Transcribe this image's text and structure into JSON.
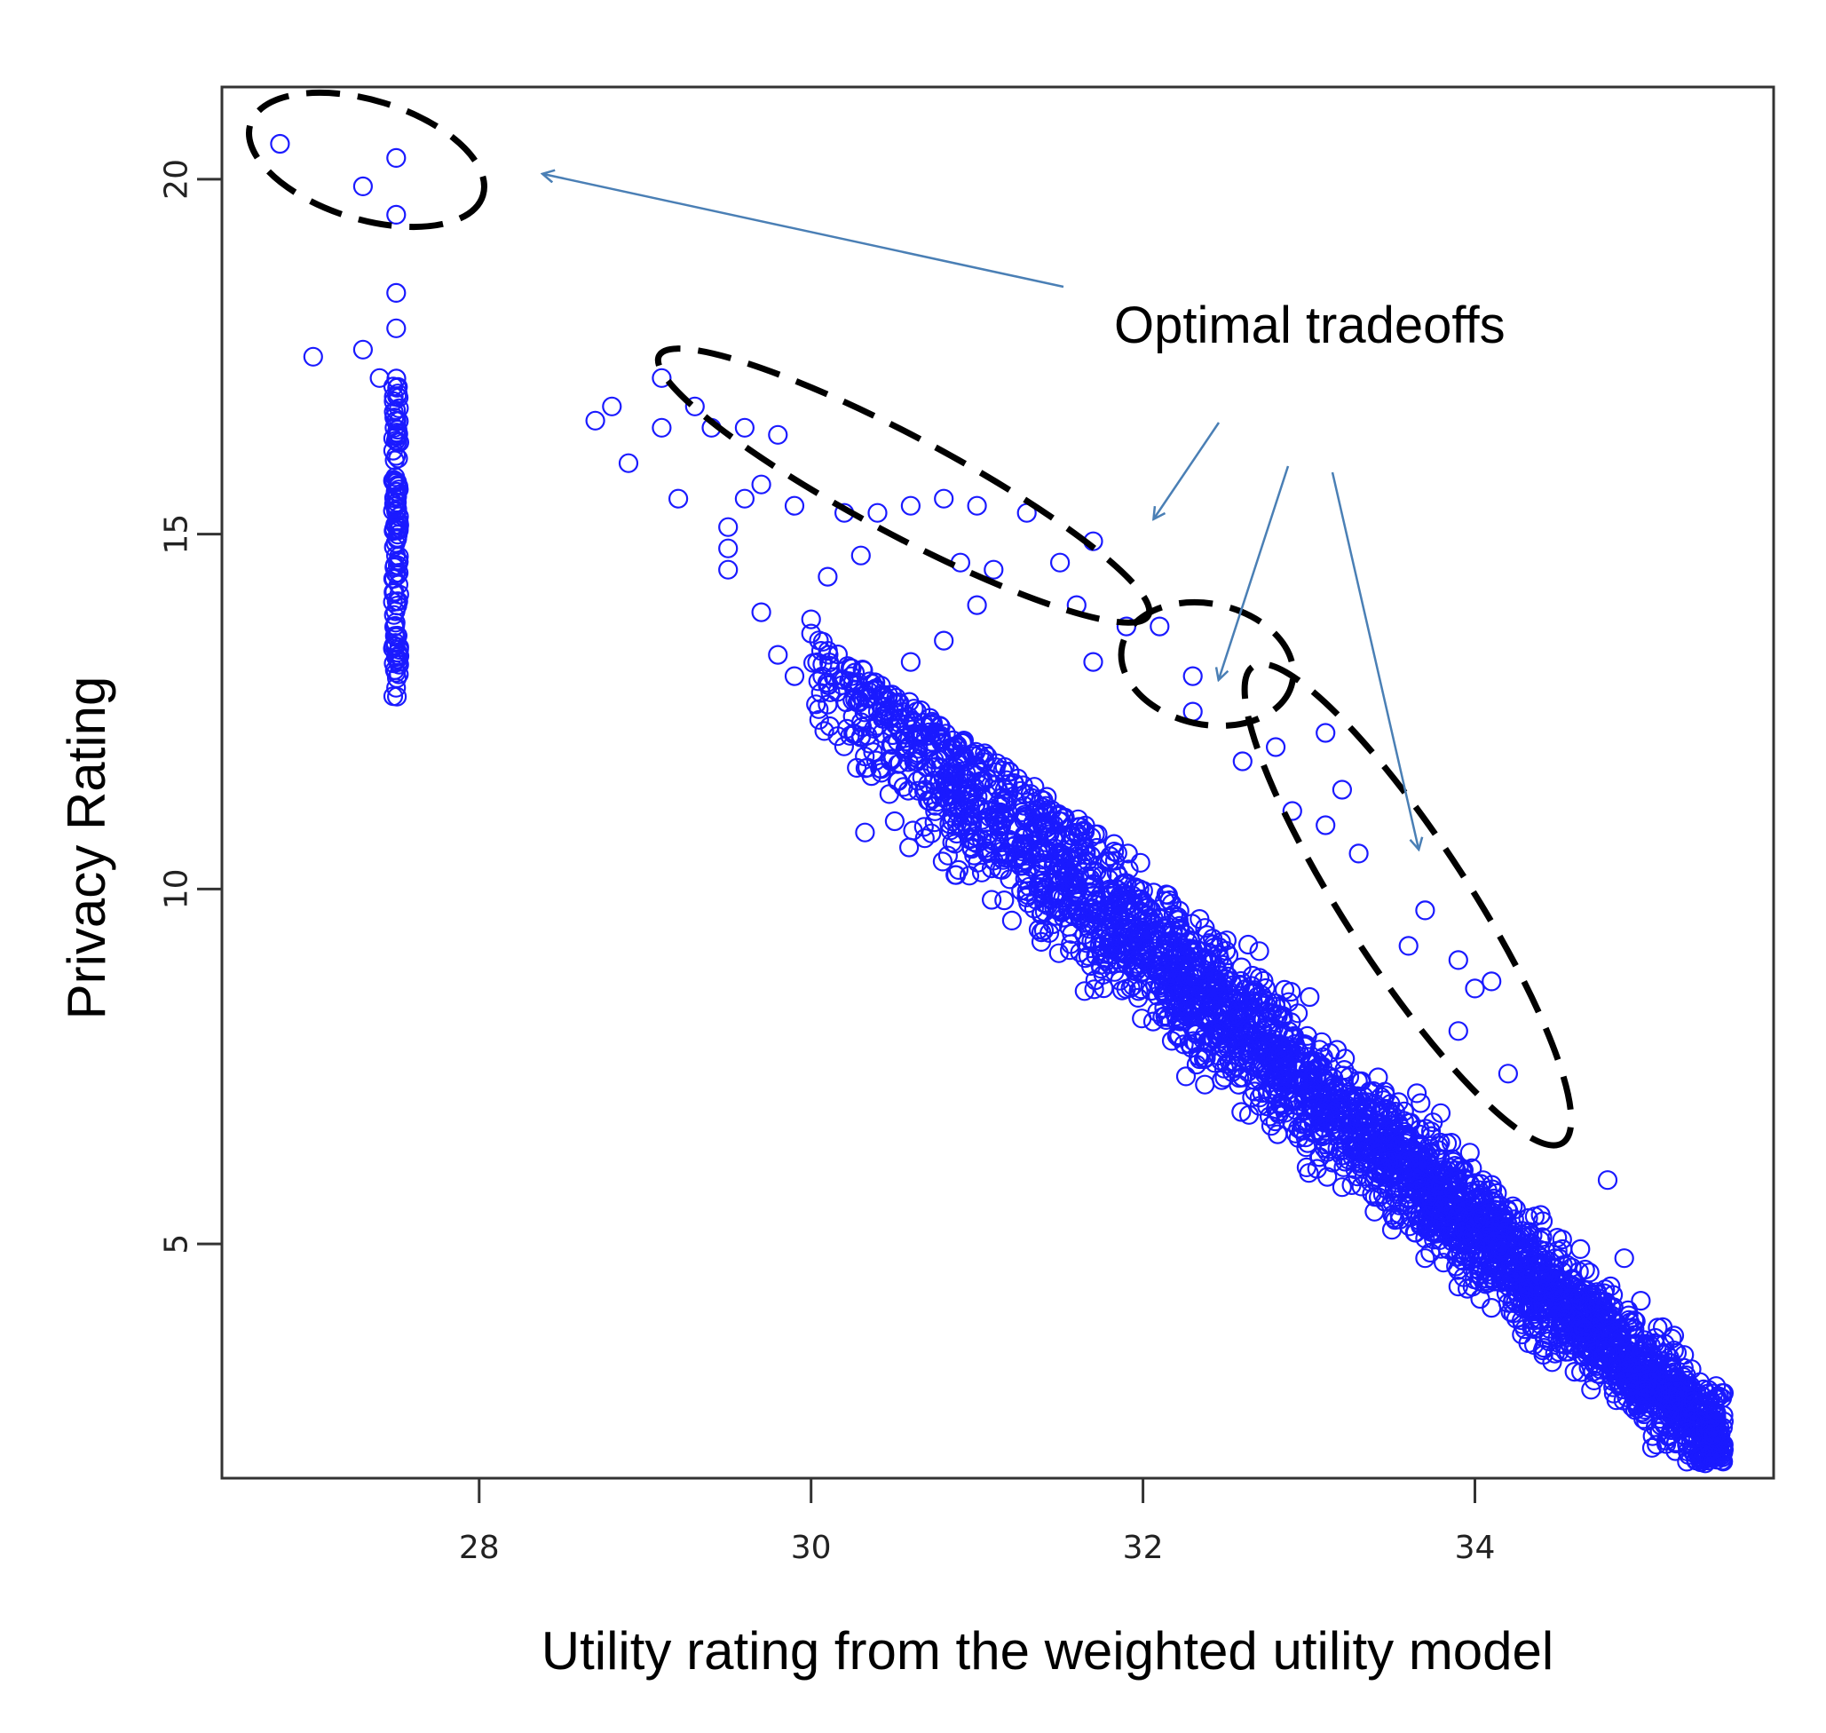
{
  "chart_data": {
    "type": "scatter",
    "xlabel": "Utility rating from the weighted utility model",
    "ylabel": "Privacy Rating",
    "xlim": [
      26.45,
      35.8
    ],
    "ylim": [
      1.7,
      21.3
    ],
    "xticks": [
      28,
      30,
      32,
      34
    ],
    "yticks": [
      5,
      10,
      15,
      20
    ],
    "grid": false,
    "marker": "open-circle",
    "point_color": "#1a1aff",
    "annotation": {
      "text": "Optimal tradeoffs"
    },
    "annotation_color": "#4a7fb5",
    "series": [
      {
        "points": [
          [
            26.8,
            20.5
          ],
          [
            27.3,
            19.9
          ],
          [
            27.5,
            20.3
          ],
          [
            27.5,
            19.5
          ],
          [
            27.0,
            17.5
          ],
          [
            27.3,
            17.6
          ],
          [
            27.4,
            17.2
          ],
          [
            27.5,
            18.4
          ],
          [
            27.5,
            17.9
          ],
          [
            28.7,
            16.6
          ],
          [
            28.9,
            16.0
          ],
          [
            28.8,
            16.8
          ],
          [
            29.1,
            16.5
          ],
          [
            29.1,
            17.2
          ],
          [
            29.2,
            15.5
          ],
          [
            29.3,
            16.8
          ],
          [
            29.4,
            16.5
          ],
          [
            29.6,
            16.5
          ],
          [
            29.5,
            15.1
          ],
          [
            29.5,
            14.8
          ],
          [
            29.5,
            14.5
          ],
          [
            29.6,
            15.5
          ],
          [
            29.7,
            15.7
          ],
          [
            29.7,
            13.9
          ],
          [
            29.8,
            16.4
          ],
          [
            29.8,
            13.3
          ],
          [
            29.9,
            13.0
          ],
          [
            29.9,
            15.4
          ],
          [
            30.0,
            13.6
          ],
          [
            30.0,
            13.8
          ],
          [
            30.1,
            14.4
          ],
          [
            30.2,
            15.3
          ],
          [
            30.1,
            12.6
          ],
          [
            30.3,
            14.7
          ],
          [
            30.4,
            15.3
          ],
          [
            30.6,
            15.4
          ],
          [
            30.8,
            15.5
          ],
          [
            30.9,
            14.6
          ],
          [
            31.0,
            14.0
          ],
          [
            31.1,
            14.5
          ],
          [
            31.0,
            15.4
          ],
          [
            31.3,
            15.3
          ],
          [
            31.5,
            14.6
          ],
          [
            31.7,
            14.9
          ],
          [
            31.6,
            14.0
          ],
          [
            31.7,
            13.2
          ],
          [
            31.9,
            13.7
          ],
          [
            32.1,
            13.7
          ],
          [
            32.3,
            13.0
          ],
          [
            32.3,
            12.5
          ],
          [
            32.6,
            11.8
          ],
          [
            32.8,
            12.0
          ],
          [
            32.9,
            11.1
          ],
          [
            33.1,
            12.2
          ],
          [
            33.2,
            11.4
          ],
          [
            33.1,
            10.9
          ],
          [
            33.3,
            10.5
          ],
          [
            33.7,
            9.7
          ],
          [
            33.6,
            9.2
          ],
          [
            33.9,
            9.0
          ],
          [
            34.0,
            8.6
          ],
          [
            34.1,
            8.7
          ],
          [
            33.9,
            8.0
          ],
          [
            34.2,
            7.4
          ],
          [
            33.2,
            5.8
          ],
          [
            33.5,
            5.2
          ],
          [
            33.7,
            4.8
          ],
          [
            33.9,
            4.4
          ],
          [
            34.1,
            4.1
          ],
          [
            34.3,
            3.8
          ],
          [
            34.6,
            3.2
          ],
          [
            34.8,
            5.9
          ],
          [
            34.9,
            4.8
          ],
          [
            35.0,
            4.2
          ],
          [
            35.1,
            3.3
          ],
          [
            35.2,
            3.5
          ],
          [
            35.3,
            3.0
          ],
          [
            35.3,
            2.6
          ],
          [
            35.4,
            2.3
          ],
          [
            35.5,
            2.9
          ],
          [
            35.5,
            2.5
          ],
          [
            35.4,
            2.0
          ],
          [
            35.5,
            2.1
          ],
          [
            31.1,
            10.4
          ],
          [
            31.5,
            10.1
          ],
          [
            31.7,
            9.5
          ],
          [
            31.9,
            9.1
          ],
          [
            32.1,
            8.8
          ],
          [
            32.3,
            8.6
          ],
          [
            32.6,
            8.3
          ],
          [
            32.9,
            7.9
          ],
          [
            32.8,
            6.9
          ],
          [
            33.1,
            6.4
          ],
          [
            33.0,
            6.0
          ],
          [
            30.5,
            12.5
          ],
          [
            30.7,
            12.0
          ],
          [
            30.4,
            12.3
          ],
          [
            30.6,
            13.2
          ],
          [
            30.8,
            13.5
          ]
        ]
      }
    ],
    "clusters": [
      {
        "name": "column",
        "x": 27.5,
        "y_from": 12.6,
        "y_to": 17.2,
        "count": 120
      },
      {
        "name": "main-band",
        "x_from": 30.0,
        "x_to": 35.5,
        "y_from": 13.3,
        "y_to": 2.2,
        "count": 3200
      }
    ]
  }
}
